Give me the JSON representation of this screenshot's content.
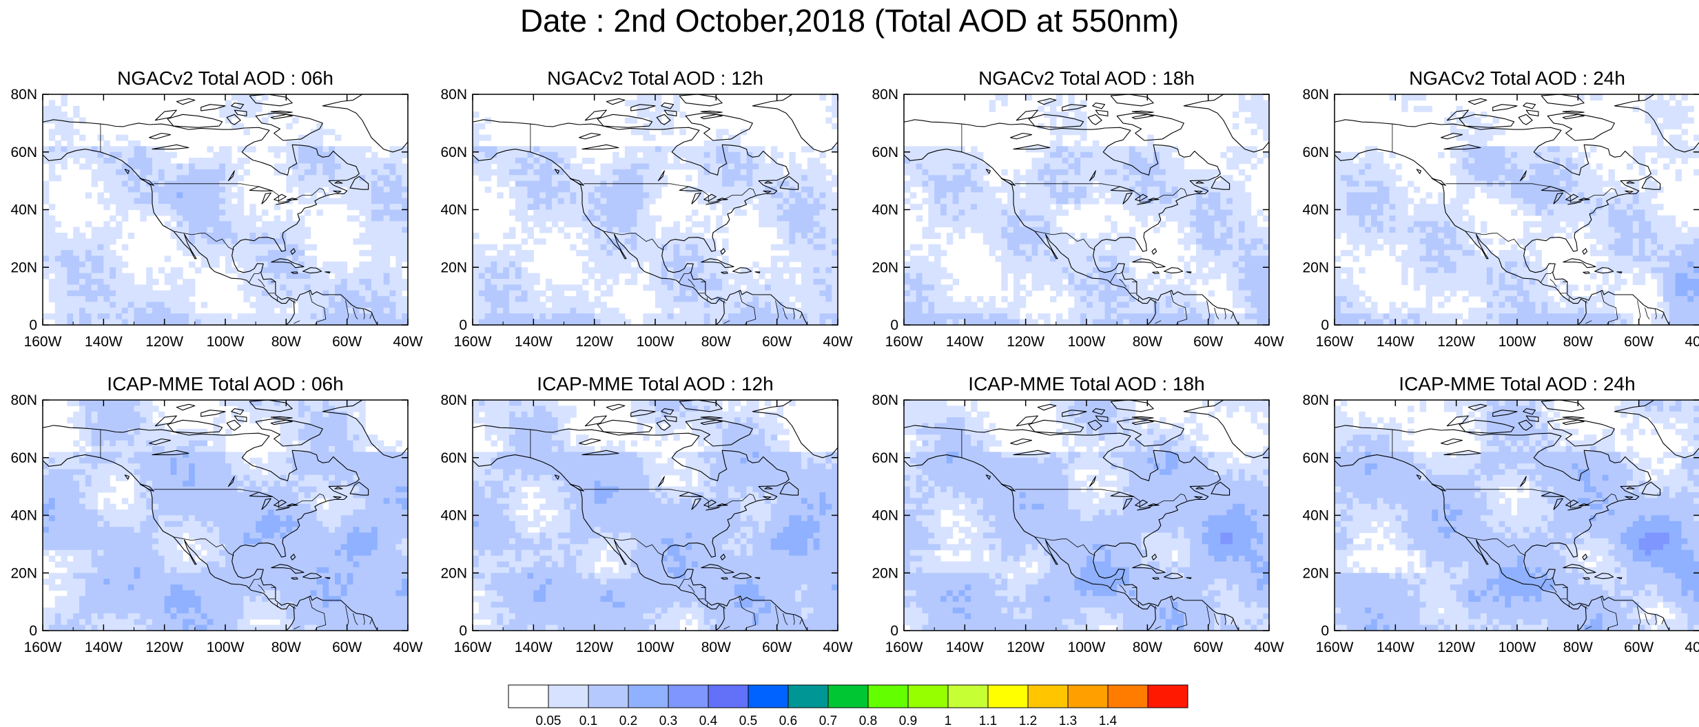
{
  "title": "Date : 2nd October,2018 (Total AOD at 550nm)",
  "panels": [
    {
      "title": "NGACv2 Total AOD : 06h",
      "model": "NGACv2",
      "hour": "06h"
    },
    {
      "title": "NGACv2 Total AOD : 12h",
      "model": "NGACv2",
      "hour": "12h"
    },
    {
      "title": "NGACv2 Total AOD : 18h",
      "model": "NGACv2",
      "hour": "18h"
    },
    {
      "title": "NGACv2 Total AOD : 24h",
      "model": "NGACv2",
      "hour": "24h"
    },
    {
      "title": "ICAP-MME Total AOD : 06h",
      "model": "ICAP-MME",
      "hour": "06h"
    },
    {
      "title": "ICAP-MME Total AOD : 12h",
      "model": "ICAP-MME",
      "hour": "12h"
    },
    {
      "title": "ICAP-MME Total AOD : 18h",
      "model": "ICAP-MME",
      "hour": "18h"
    },
    {
      "title": "ICAP-MME Total AOD : 24h",
      "model": "ICAP-MME",
      "hour": "24h"
    }
  ],
  "axes": {
    "lat_ticks": [
      "80N",
      "60N",
      "40N",
      "20N",
      "0"
    ],
    "lon_ticks": [
      "160W",
      "140W",
      "120W",
      "100W",
      "80W",
      "60W",
      "40W"
    ],
    "lat_values": [
      80,
      60,
      40,
      20,
      0
    ],
    "lon_values": [
      -160,
      -140,
      -120,
      -100,
      -80,
      -60,
      -40
    ],
    "lat_range": [
      0,
      80
    ],
    "lon_range": [
      -160,
      -40
    ]
  },
  "colorbar": {
    "labels": [
      "0.05",
      "0.1",
      "0.2",
      "0.3",
      "0.4",
      "0.5",
      "0.6",
      "0.7",
      "0.8",
      "0.9",
      "1",
      "1.1",
      "1.2",
      "1.3",
      "1.4"
    ],
    "colors": [
      "#ffffff",
      "#d6e2ff",
      "#b5c9ff",
      "#8fb1ff",
      "#7f96ff",
      "#6370f8",
      "#0063ff",
      "#009696",
      "#00c633",
      "#63ff00",
      "#96ff00",
      "#c6ff33",
      "#ffff00",
      "#ffc600",
      "#ffa000",
      "#ff7c00",
      "#ff1900"
    ]
  },
  "colors": {
    "land_outline": "#000000",
    "frame": "#000000",
    "background": "#ffffff"
  }
}
